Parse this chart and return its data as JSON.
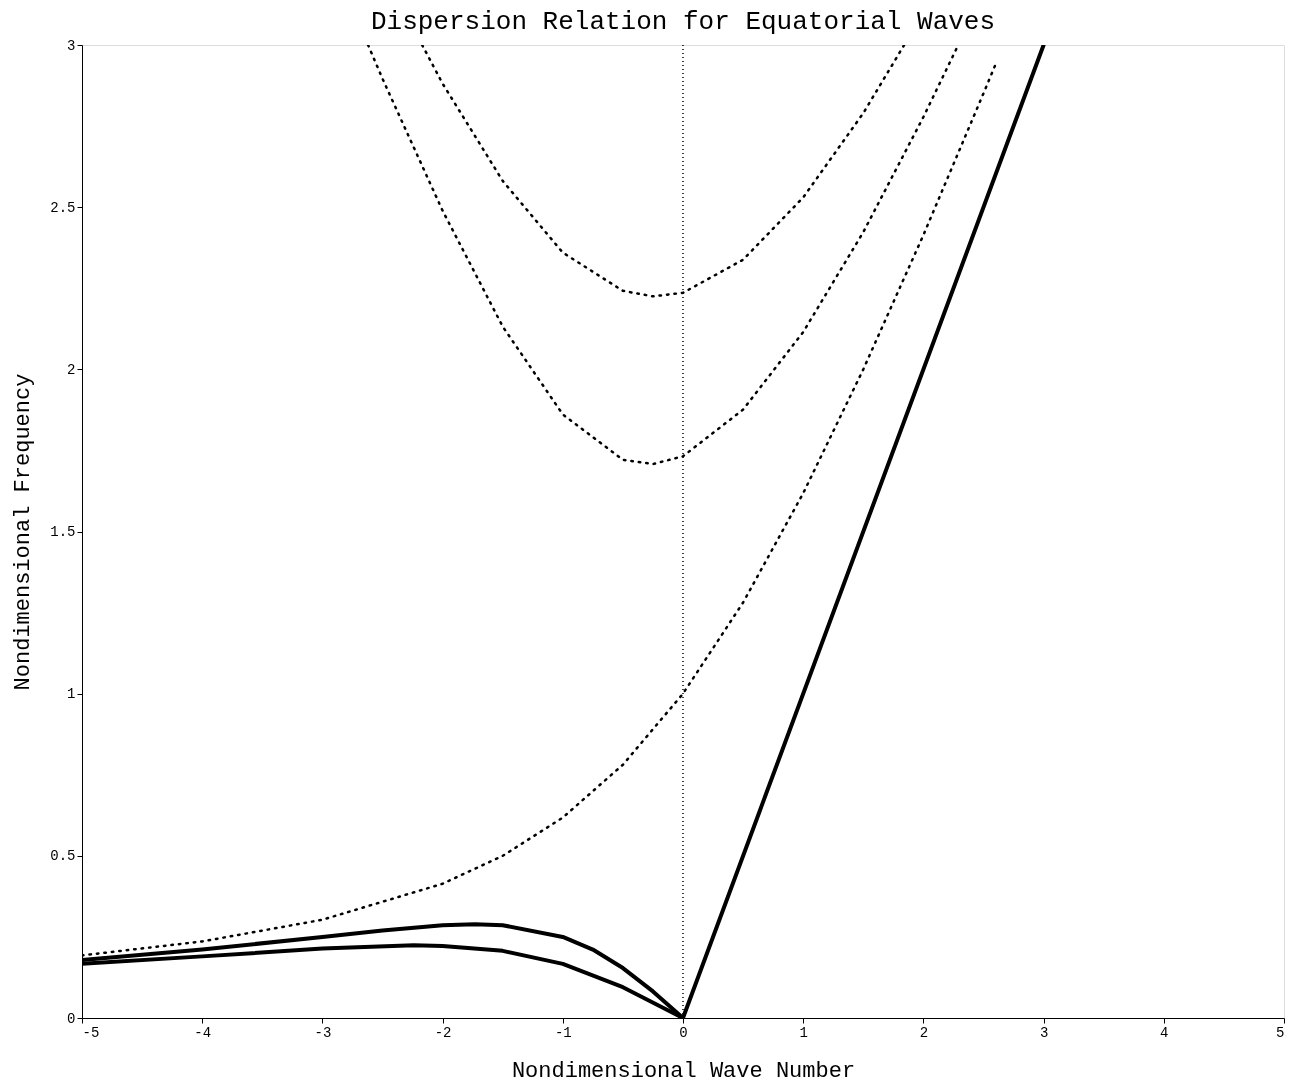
{
  "chart_data": {
    "type": "line",
    "title": "Dispersion Relation for Equatorial Waves",
    "xlabel": "Nondimensional Wave Number",
    "ylabel": "Nondimensional Frequency",
    "xlim": [
      -5,
      5
    ],
    "ylim": [
      0,
      3
    ],
    "xticks": [
      -5,
      -4,
      -3,
      -2,
      -1,
      0,
      1,
      2,
      3,
      4,
      5
    ],
    "yticks": [
      0,
      0.5,
      1,
      1.5,
      2,
      2.5,
      3
    ],
    "grid": false,
    "series": [
      {
        "color": "#000000",
        "line_style": "solid",
        "x": [
          0,
          3
        ],
        "values": [
          0,
          3
        ]
      },
      {
        "color": "#000000",
        "line_style": "dotted",
        "x": [
          -5,
          -4,
          -3,
          -2,
          -1.5,
          -1,
          -0.5,
          0,
          0.5,
          1,
          1.5,
          2,
          2.5,
          2.6
        ],
        "values": [
          0.193,
          0.236,
          0.303,
          0.414,
          0.5,
          0.618,
          0.781,
          1,
          1.281,
          1.618,
          2.0,
          2.414,
          2.851,
          2.94
        ]
      },
      {
        "color": "#000000",
        "line_style": "solid",
        "x": [
          -5,
          -4,
          -3,
          -2.5,
          -2,
          -1.73,
          -1.5,
          -1,
          -0.75,
          -0.5,
          -0.25,
          0
        ],
        "values": [
          0.179,
          0.211,
          0.25,
          0.27,
          0.286,
          0.289,
          0.286,
          0.25,
          0.211,
          0.154,
          0.082,
          0
        ]
      },
      {
        "color": "#000000",
        "line_style": "solid",
        "x": [
          -5,
          -4,
          -3,
          -2.24,
          -2,
          -1.5,
          -1,
          -0.5,
          0
        ],
        "values": [
          0.167,
          0.19,
          0.214,
          0.224,
          0.222,
          0.207,
          0.167,
          0.095,
          0
        ]
      },
      {
        "color": "#000000",
        "line_style": "dotted",
        "x": [
          -2.62,
          -2.5,
          -2,
          -1.5,
          -1,
          -0.5,
          -0.25,
          0,
          0.5,
          1,
          1.5,
          2,
          2.29
        ],
        "values": [
          3.0,
          2.896,
          2.489,
          2.132,
          1.861,
          1.721,
          1.708,
          1.732,
          1.876,
          2.115,
          2.423,
          2.778,
          3.0
        ]
      },
      {
        "color": "#000000",
        "line_style": "dotted",
        "x": [
          -2.17,
          -2,
          -1.5,
          -1,
          -0.5,
          -0.25,
          0,
          0.5,
          1,
          1.5,
          1.84
        ],
        "values": [
          3.0,
          2.881,
          2.581,
          2.36,
          2.242,
          2.225,
          2.236,
          2.338,
          2.53,
          2.79,
          3.0
        ]
      }
    ],
    "ref_lines": [
      {
        "axis": "x",
        "value": 0,
        "color": "#000000",
        "line_style": "dotted"
      }
    ]
  }
}
